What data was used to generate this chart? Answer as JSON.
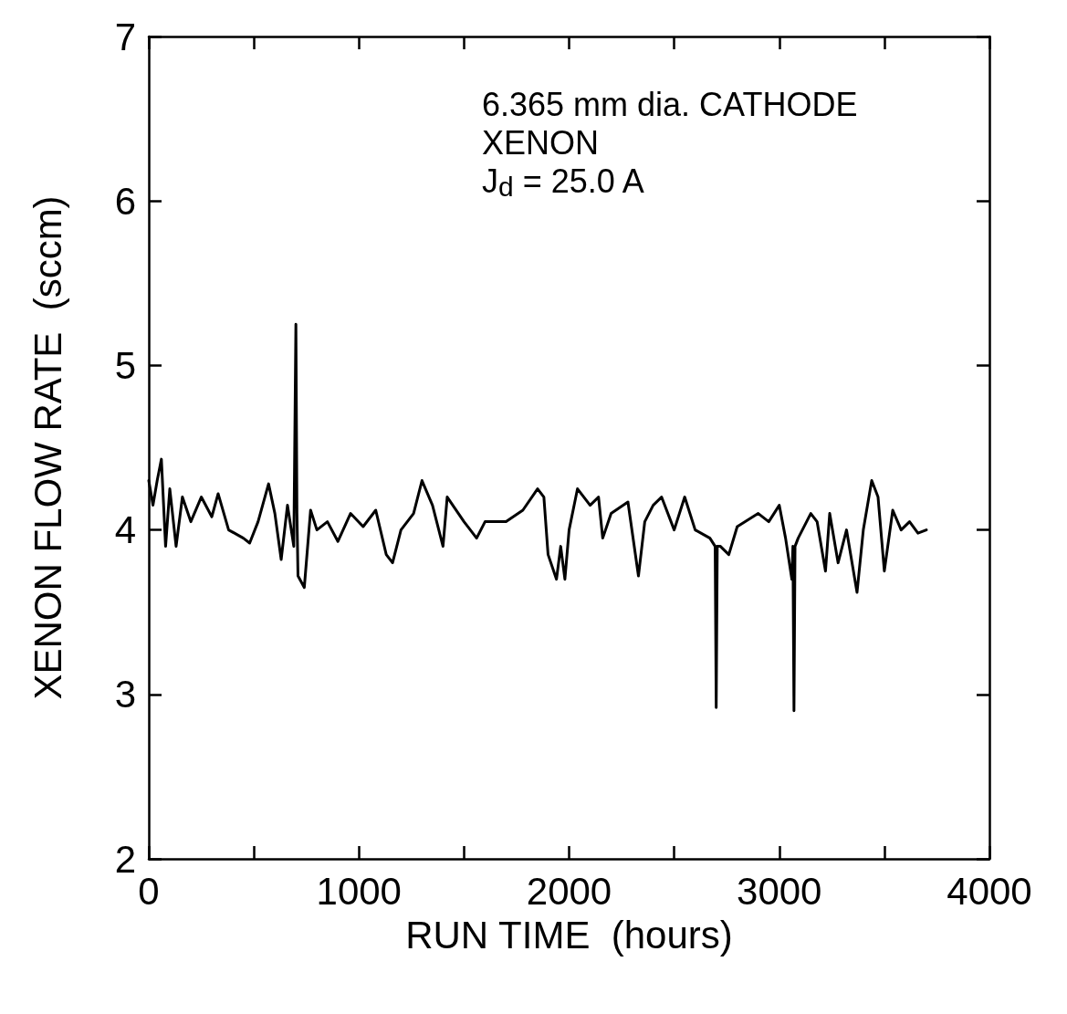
{
  "chart_data": {
    "type": "line",
    "xlabel": "RUN TIME  (hours)",
    "ylabel": "XENON FLOW RATE  (sccm)",
    "annotations": [
      "6.365 mm dia. CATHODE",
      "XENON",
      "J$_{d}$ = 25.0 A"
    ],
    "xlim": [
      0,
      4000
    ],
    "ylim": [
      2,
      7
    ],
    "xticks": [
      0,
      {
        "value": 500,
        "label": null
      },
      1000,
      {
        "value": 1500,
        "label": null
      },
      2000,
      {
        "value": 2500,
        "label": null
      },
      3000,
      {
        "value": 3500,
        "label": null
      },
      4000
    ],
    "yticks": [
      2,
      3,
      4,
      5,
      6,
      7
    ],
    "grid": false,
    "marker": "none",
    "line_style": "solid",
    "series": [
      {
        "color": "#000000",
        "x": [
          0,
          20,
          40,
          60,
          80,
          100,
          130,
          160,
          200,
          250,
          300,
          330,
          380,
          450,
          480,
          520,
          570,
          600,
          630,
          660,
          690,
          700,
          705,
          710,
          740,
          770,
          800,
          850,
          900,
          960,
          1020,
          1080,
          1130,
          1160,
          1200,
          1260,
          1300,
          1350,
          1400,
          1420,
          1500,
          1560,
          1600,
          1700,
          1780,
          1850,
          1880,
          1900,
          1940,
          1960,
          1980,
          2000,
          2040,
          2100,
          2140,
          2160,
          2200,
          2280,
          2330,
          2360,
          2400,
          2440,
          2500,
          2550,
          2600,
          2670,
          2695,
          2700,
          2705,
          2720,
          2760,
          2800,
          2900,
          2950,
          3000,
          3030,
          3060,
          3065,
          3070,
          3075,
          3090,
          3150,
          3180,
          3220,
          3240,
          3280,
          3320,
          3370,
          3400,
          3440,
          3470,
          3500,
          3540,
          3580,
          3620,
          3660,
          3700
        ],
        "values": [
          4.3,
          4.15,
          4.3,
          4.43,
          3.9,
          4.25,
          3.9,
          4.2,
          4.05,
          4.2,
          4.08,
          4.22,
          4.0,
          3.95,
          3.92,
          4.05,
          4.28,
          4.1,
          3.82,
          4.15,
          3.9,
          5.25,
          4.1,
          3.72,
          3.65,
          4.12,
          4.0,
          4.05,
          3.93,
          4.1,
          4.02,
          4.12,
          3.85,
          3.8,
          4.0,
          4.1,
          4.3,
          4.15,
          3.9,
          4.2,
          4.05,
          3.95,
          4.05,
          4.05,
          4.12,
          4.25,
          4.2,
          3.85,
          3.7,
          3.9,
          3.7,
          4.0,
          4.25,
          4.15,
          4.2,
          3.95,
          4.1,
          4.17,
          3.72,
          4.05,
          4.15,
          4.2,
          4.0,
          4.2,
          4.0,
          3.95,
          3.9,
          2.92,
          3.9,
          3.9,
          3.85,
          4.02,
          4.1,
          4.05,
          4.15,
          3.95,
          3.7,
          3.9,
          2.9,
          3.9,
          3.95,
          4.1,
          4.05,
          3.75,
          4.1,
          3.8,
          4.0,
          3.62,
          4.0,
          4.3,
          4.2,
          3.75,
          4.12,
          4.0,
          4.05,
          3.98,
          4.0
        ]
      }
    ]
  }
}
